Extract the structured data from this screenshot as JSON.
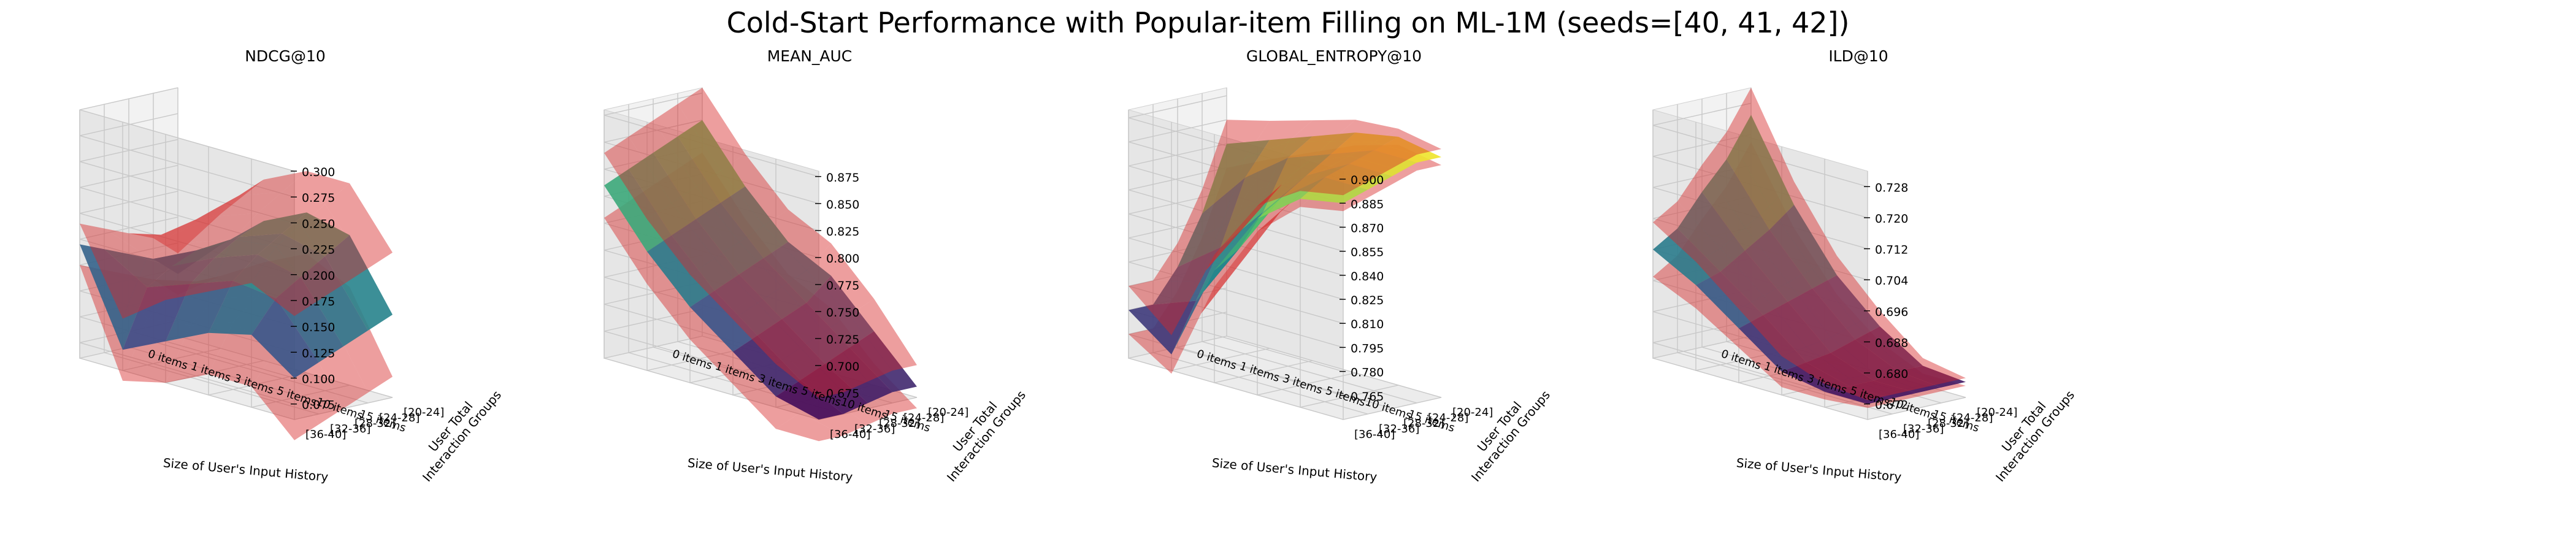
{
  "figure": {
    "title": "Cold-Start Performance with Popular-item Filling on ML-1M (seeds=[40, 41, 42])"
  },
  "colors": {
    "error_surface": "#d62728",
    "colormap": [
      "#440154",
      "#3b528b",
      "#21918c",
      "#5ec962",
      "#fde725"
    ]
  },
  "chart_data": [
    {
      "type": "surface3d",
      "title": "NDCG@10",
      "xlabel": "Size of User's Input History",
      "ylabel": "User Total\nInteraction Groups",
      "x_ticks": [
        "0 items",
        "1 items",
        "3 items",
        "5 items",
        "10 items",
        "15 items"
      ],
      "y_ticks": [
        "[20-24]",
        "[24-28]",
        "[28-32]",
        "[32-36]",
        "[36-40]"
      ],
      "z_ticks": [
        "0.075",
        "0.100",
        "0.125",
        "0.150",
        "0.175",
        "0.200",
        "0.225",
        "0.250",
        "0.275",
        "0.300"
      ],
      "zlim": [
        0.06,
        0.3
      ],
      "z": [
        [
          0.14,
          0.205,
          0.215,
          0.195,
          0.16,
          0.12
        ],
        [
          0.13,
          0.19,
          0.2,
          0.185,
          0.16,
          0.14
        ],
        [
          0.12,
          0.175,
          0.185,
          0.17,
          0.15,
          0.15
        ],
        [
          0.11,
          0.16,
          0.165,
          0.15,
          0.135,
          0.16
        ],
        [
          0.1,
          0.13,
          0.12,
          0.1,
          0.08,
          0.17
        ]
      ],
      "z_err": [
        0.06,
        0.05,
        0.04,
        0.04,
        0.03,
        0.02
      ]
    },
    {
      "type": "surface3d",
      "title": "MEAN_AUC",
      "xlabel": "Size of User's Input History",
      "ylabel": "User Total\nInteraction Groups",
      "x_ticks": [
        "0 items",
        "1 items",
        "3 items",
        "5 items",
        "10 items",
        "15 items"
      ],
      "y_ticks": [
        "[20-24]",
        "[24-28]",
        "[28-32]",
        "[32-36]",
        "[36-40]"
      ],
      "z_ticks": [
        "0.675",
        "0.700",
        "0.725",
        "0.750",
        "0.775",
        "0.800",
        "0.825",
        "0.850",
        "0.875"
      ],
      "zlim": [
        0.65,
        0.88
      ],
      "z": [
        [
          0.66,
          0.7,
          0.74,
          0.76,
          0.8,
          0.85
        ],
        [
          0.66,
          0.69,
          0.72,
          0.75,
          0.79,
          0.84
        ],
        [
          0.655,
          0.68,
          0.71,
          0.74,
          0.78,
          0.83
        ],
        [
          0.65,
          0.67,
          0.7,
          0.73,
          0.77,
          0.82
        ],
        [
          0.65,
          0.66,
          0.69,
          0.72,
          0.76,
          0.81
        ]
      ],
      "z_err": [
        0.02,
        0.03,
        0.03,
        0.03,
        0.03,
        0.03
      ]
    },
    {
      "type": "surface3d",
      "title": "GLOBAL_ENTROPY@10",
      "xlabel": "Size of User's Input History",
      "ylabel": "User Total\nInteraction Groups",
      "x_ticks": [
        "0 items",
        "1 items",
        "3 items",
        "5 items",
        "10 items",
        "15 items"
      ],
      "y_ticks": [
        "[20-24]",
        "[24-28]",
        "[28-32]",
        "[32-36]",
        "[36-40]"
      ],
      "z_ticks": [
        "0.765",
        "0.780",
        "0.795",
        "0.810",
        "0.825",
        "0.840",
        "0.855",
        "0.870",
        "0.885",
        "0.900"
      ],
      "zlim": [
        0.75,
        0.905
      ],
      "z": [
        [
          0.9,
          0.905,
          0.9,
          0.89,
          0.88,
          0.87
        ],
        [
          0.9,
          0.9,
          0.89,
          0.88,
          0.86,
          0.83
        ],
        [
          0.895,
          0.895,
          0.88,
          0.85,
          0.82,
          0.8
        ],
        [
          0.89,
          0.89,
          0.87,
          0.83,
          0.79,
          0.78
        ],
        [
          0.885,
          0.88,
          0.86,
          0.82,
          0.76,
          0.78
        ]
      ],
      "z_err": [
        0.005,
        0.005,
        0.008,
        0.01,
        0.012,
        0.015
      ]
    },
    {
      "type": "surface3d",
      "title": "ILD@10",
      "xlabel": "Size of User's Input History",
      "ylabel": "User Total\nInteraction Groups",
      "x_ticks": [
        "0 items",
        "1 items",
        "3 items",
        "5 items",
        "10 items",
        "15 items"
      ],
      "y_ticks": [
        "[20-24]",
        "[24-28]",
        "[28-32]",
        "[32-36]",
        "[36-40]"
      ],
      "z_ticks": [
        "0.672",
        "0.680",
        "0.688",
        "0.696",
        "0.704",
        "0.712",
        "0.720",
        "0.728"
      ],
      "zlim": [
        0.668,
        0.732
      ],
      "z": [
        [
          0.672,
          0.673,
          0.68,
          0.69,
          0.705,
          0.725
        ],
        [
          0.672,
          0.673,
          0.678,
          0.688,
          0.7,
          0.715
        ],
        [
          0.672,
          0.672,
          0.676,
          0.686,
          0.696,
          0.708
        ],
        [
          0.672,
          0.672,
          0.675,
          0.684,
          0.692,
          0.7
        ],
        [
          0.672,
          0.672,
          0.674,
          0.682,
          0.69,
          0.696
        ]
      ],
      "z_err": [
        0.001,
        0.002,
        0.004,
        0.005,
        0.006,
        0.007
      ]
    }
  ]
}
